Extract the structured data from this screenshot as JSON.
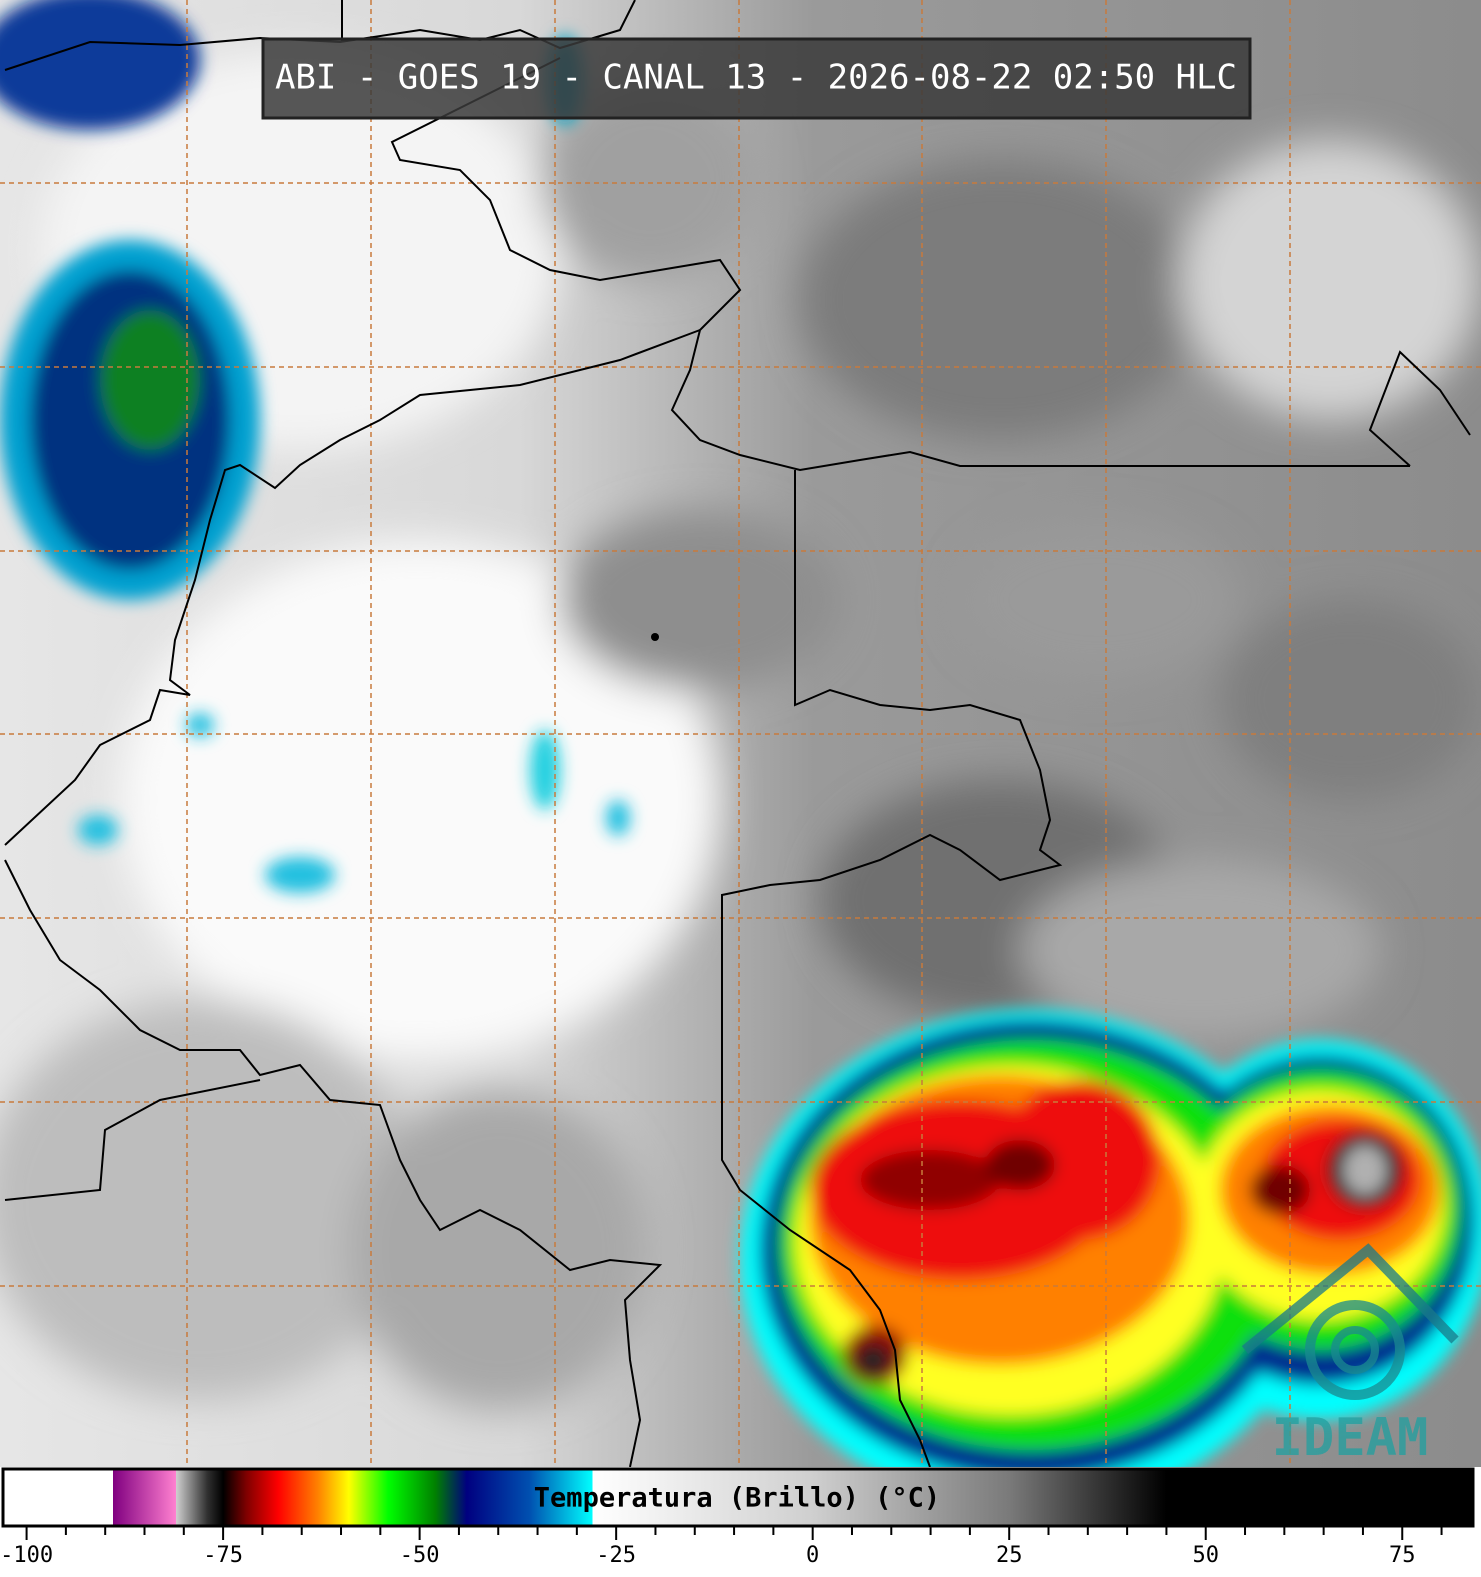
{
  "header": {
    "title": "ABI - GOES 19 - CANAL 13 - 2026-08-22 02:50 HLC"
  },
  "logo": {
    "text": "IDEAM"
  },
  "colorbar": {
    "label": "Temperatura (Brillo) (°C)",
    "xlim": [
      -103,
      84
    ],
    "ticks": [
      -100,
      -75,
      -50,
      -25,
      0,
      25,
      50,
      75
    ],
    "minor_ticks": [
      -95,
      -90,
      -85,
      -80,
      -70,
      -65,
      -60,
      -55,
      -45,
      -40,
      -35,
      -30,
      -20,
      -15,
      -10,
      -5,
      5,
      10,
      15,
      20,
      30,
      35,
      40,
      45,
      55,
      60,
      65,
      70,
      80
    ],
    "colormap": [
      {
        "value": -103,
        "color": "#ffffff"
      },
      {
        "value": -89,
        "color": "#ffffff"
      },
      {
        "value": -89,
        "color": "#800080"
      },
      {
        "value": -81,
        "color": "#ff80d0"
      },
      {
        "value": -81,
        "color": "#d0d0d0"
      },
      {
        "value": -77,
        "color": "#303030"
      },
      {
        "value": -75,
        "color": "#000000"
      },
      {
        "value": -72,
        "color": "#800000"
      },
      {
        "value": -68,
        "color": "#ff0000"
      },
      {
        "value": -63,
        "color": "#ff8000"
      },
      {
        "value": -59,
        "color": "#ffff00"
      },
      {
        "value": -54,
        "color": "#00ff00"
      },
      {
        "value": -48,
        "color": "#008000"
      },
      {
        "value": -44,
        "color": "#000080"
      },
      {
        "value": -36,
        "color": "#0050b0"
      },
      {
        "value": -28,
        "color": "#00ffff"
      },
      {
        "value": -28,
        "color": "#ffffff"
      },
      {
        "value": 0,
        "color": "#cfcfcf"
      },
      {
        "value": 25,
        "color": "#7a7a7a"
      },
      {
        "value": 45,
        "color": "#000000"
      },
      {
        "value": 84,
        "color": "#000000"
      }
    ]
  }
}
